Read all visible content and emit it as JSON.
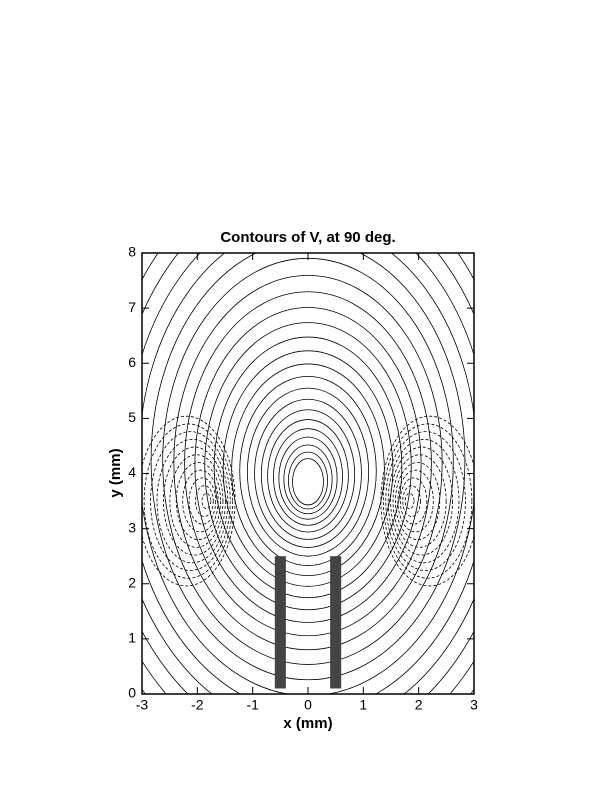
{
  "chart_data": {
    "type": "contour",
    "title": "Contours of V, at 90 deg.",
    "x_label": "x (mm)",
    "y_label": "y (mm)",
    "xlim": [
      -3,
      3
    ],
    "ylim": [
      0,
      8
    ],
    "xticks": [
      -3,
      -2,
      -1,
      0,
      1,
      2,
      3
    ],
    "yticks": [
      0,
      1,
      2,
      3,
      4,
      5,
      6,
      7,
      8
    ]
  }
}
